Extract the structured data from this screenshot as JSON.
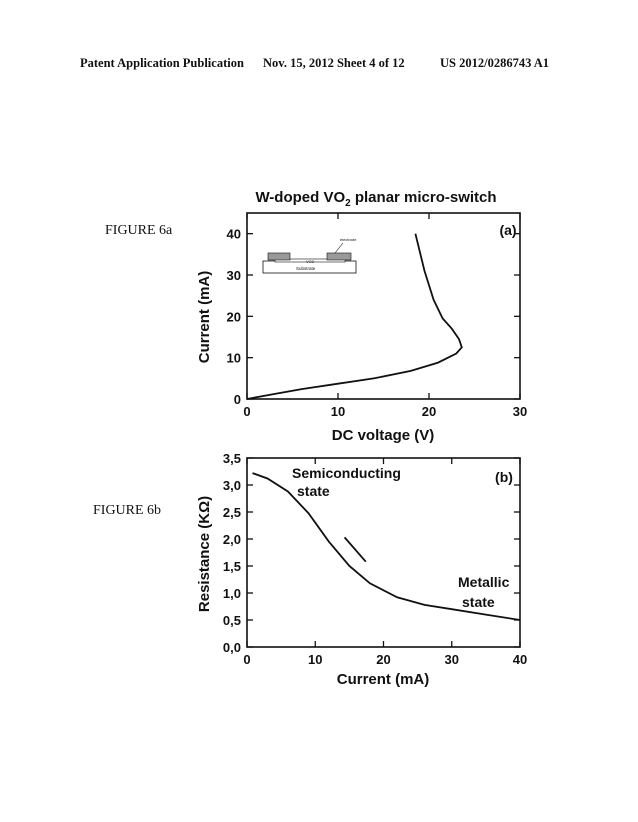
{
  "header": {
    "publication": "Patent Application Publication",
    "date_sheet": "Nov. 15, 2012   Sheet 4 of 12",
    "number": "US 2012/0286743 A1"
  },
  "figures": {
    "a_label": "FIGURE 6a",
    "b_label": "FIGURE 6b"
  },
  "inset": {
    "electrode_label": "electrode",
    "film_label": "VO2",
    "substrate_label": "Substrate"
  },
  "chart_data": [
    {
      "type": "line",
      "title": "W-doped VO2 planar micro-switch",
      "panel_label": "(a)",
      "xlabel": "DC voltage (V)",
      "ylabel": "Current (mA)",
      "xlim": [
        0,
        30
      ],
      "ylim": [
        0,
        45
      ],
      "xticks": [
        "0",
        "10",
        "20",
        "30"
      ],
      "yticks": [
        "0",
        "10",
        "20",
        "30",
        "40"
      ],
      "series": [
        {
          "x": [
            0,
            3,
            6,
            10,
            14,
            18,
            21,
            23,
            23.6,
            23.3,
            22.5,
            21.5,
            20.5,
            19.5,
            18.5
          ],
          "y": [
            0,
            1.2,
            2.4,
            3.7,
            5.0,
            6.8,
            8.8,
            11.0,
            12.5,
            14.5,
            17.0,
            19.5,
            24.0,
            31.0,
            40.0
          ]
        }
      ]
    },
    {
      "type": "line",
      "panel_label": "(b)",
      "xlabel": "Current (mA)",
      "ylabel": "Resistance (KΩ)",
      "xlim": [
        0,
        40
      ],
      "ylim": [
        0,
        3.5
      ],
      "xticks": [
        "0",
        "10",
        "20",
        "30",
        "40"
      ],
      "yticks": [
        "0,0",
        "0,5",
        "1,0",
        "1,5",
        "2,0",
        "2,5",
        "3,0",
        "3,5"
      ],
      "annotations": [
        "Semiconducting",
        "state",
        "Metallic",
        "state"
      ],
      "series": [
        {
          "x": [
            0.8,
            3,
            6,
            9,
            12,
            15,
            18,
            22,
            26,
            30,
            35,
            40
          ],
          "y": [
            3.22,
            3.12,
            2.88,
            2.48,
            1.95,
            1.5,
            1.18,
            0.92,
            0.78,
            0.7,
            0.6,
            0.5
          ]
        },
        {
          "x": [
            14.3,
            17.4
          ],
          "y": [
            2.03,
            1.58
          ]
        }
      ]
    }
  ]
}
